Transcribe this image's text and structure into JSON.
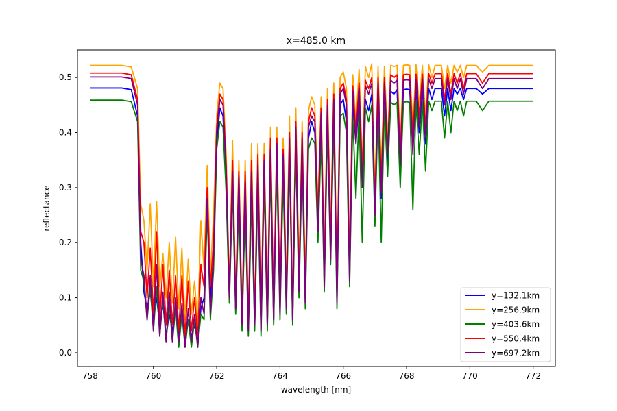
{
  "chart_data": {
    "type": "line",
    "title": "x=485.0 km",
    "xlabel": "wavelength [nm]",
    "ylabel": "reflectance",
    "xlim": [
      757.6,
      772.7
    ],
    "ylim": [
      -0.025,
      0.55
    ],
    "xticks": [
      758,
      760,
      762,
      764,
      766,
      768,
      770,
      772
    ],
    "yticks": [
      0.0,
      0.1,
      0.2,
      0.3,
      0.4,
      0.5
    ],
    "ytick_labels": [
      "0.0",
      "0.1",
      "0.2",
      "0.3",
      "0.4",
      "0.5"
    ],
    "grid": false,
    "legend_position": "lower-right",
    "x": [
      758.0,
      758.5,
      759.0,
      759.3,
      759.5,
      759.6,
      759.7,
      759.8,
      759.9,
      760.0,
      760.1,
      760.2,
      760.3,
      760.4,
      760.5,
      760.6,
      760.7,
      760.8,
      760.9,
      761.0,
      761.1,
      761.2,
      761.3,
      761.4,
      761.5,
      761.6,
      761.7,
      761.8,
      761.9,
      762.0,
      762.1,
      762.2,
      762.3,
      762.4,
      762.5,
      762.6,
      762.7,
      762.8,
      762.9,
      763.0,
      763.1,
      763.2,
      763.3,
      763.4,
      763.5,
      763.6,
      763.7,
      763.8,
      763.9,
      764.0,
      764.1,
      764.2,
      764.3,
      764.4,
      764.5,
      764.6,
      764.7,
      764.8,
      764.9,
      765.0,
      765.1,
      765.2,
      765.3,
      765.4,
      765.5,
      765.6,
      765.7,
      765.8,
      765.9,
      766.0,
      766.1,
      766.2,
      766.3,
      766.4,
      766.5,
      766.6,
      766.7,
      766.8,
      766.9,
      767.0,
      767.1,
      767.2,
      767.3,
      767.4,
      767.5,
      767.6,
      767.7,
      767.8,
      767.9,
      768.0,
      768.1,
      768.2,
      768.3,
      768.4,
      768.5,
      768.6,
      768.7,
      768.8,
      768.9,
      769.0,
      769.1,
      769.2,
      769.3,
      769.4,
      769.5,
      769.6,
      769.7,
      769.8,
      769.9,
      770.0,
      770.2,
      770.4,
      770.6,
      770.8,
      771.0,
      771.2,
      771.4,
      771.6,
      771.8,
      772.0
    ],
    "series": [
      {
        "name": "y=132.1km",
        "color": "#0000ff",
        "values": [
          0.481,
          0.481,
          0.481,
          0.478,
          0.43,
          0.2,
          0.11,
          0.08,
          0.11,
          0.06,
          0.1,
          0.05,
          0.09,
          0.03,
          0.07,
          0.04,
          0.08,
          0.03,
          0.07,
          0.02,
          0.06,
          0.03,
          0.05,
          0.02,
          0.08,
          0.1,
          0.27,
          0.1,
          0.17,
          0.38,
          0.445,
          0.43,
          0.3,
          0.1,
          0.31,
          0.08,
          0.3,
          0.05,
          0.28,
          0.04,
          0.3,
          0.05,
          0.32,
          0.04,
          0.33,
          0.05,
          0.36,
          0.06,
          0.36,
          0.08,
          0.34,
          0.09,
          0.37,
          0.06,
          0.39,
          0.12,
          0.37,
          0.1,
          0.39,
          0.42,
          0.4,
          0.23,
          0.41,
          0.13,
          0.43,
          0.18,
          0.44,
          0.1,
          0.45,
          0.46,
          0.42,
          0.14,
          0.455,
          0.38,
          0.46,
          0.31,
          0.46,
          0.44,
          0.47,
          0.25,
          0.47,
          0.28,
          0.475,
          0.34,
          0.475,
          0.47,
          0.478,
          0.33,
          0.478,
          0.479,
          0.478,
          0.37,
          0.479,
          0.4,
          0.48,
          0.38,
          0.48,
          0.46,
          0.48,
          0.48,
          0.48,
          0.43,
          0.48,
          0.44,
          0.48,
          0.47,
          0.48,
          0.46,
          0.48,
          0.48,
          0.48,
          0.47,
          0.48,
          0.48,
          0.48,
          0.48,
          0.48,
          0.48,
          0.48,
          0.48
        ]
      },
      {
        "name": "y=256.9km",
        "color": "#ffa500",
        "values": [
          0.522,
          0.522,
          0.522,
          0.519,
          0.48,
          0.27,
          0.24,
          0.15,
          0.27,
          0.12,
          0.275,
          0.12,
          0.18,
          0.1,
          0.2,
          0.09,
          0.21,
          0.08,
          0.19,
          0.06,
          0.17,
          0.07,
          0.13,
          0.05,
          0.24,
          0.15,
          0.34,
          0.14,
          0.25,
          0.43,
          0.49,
          0.48,
          0.36,
          0.12,
          0.385,
          0.1,
          0.35,
          0.07,
          0.35,
          0.06,
          0.38,
          0.07,
          0.38,
          0.06,
          0.38,
          0.07,
          0.41,
          0.08,
          0.41,
          0.1,
          0.39,
          0.12,
          0.43,
          0.08,
          0.445,
          0.15,
          0.42,
          0.13,
          0.44,
          0.465,
          0.45,
          0.27,
          0.465,
          0.16,
          0.48,
          0.22,
          0.49,
          0.12,
          0.5,
          0.51,
          0.48,
          0.17,
          0.505,
          0.42,
          0.515,
          0.35,
          0.52,
          0.5,
          0.525,
          0.29,
          0.52,
          0.33,
          0.52,
          0.39,
          0.522,
          0.52,
          0.522,
          0.38,
          0.522,
          0.523,
          0.522,
          0.41,
          0.523,
          0.45,
          0.522,
          0.43,
          0.523,
          0.5,
          0.522,
          0.522,
          0.522,
          0.48,
          0.522,
          0.49,
          0.522,
          0.51,
          0.522,
          0.5,
          0.522,
          0.522,
          0.522,
          0.51,
          0.522,
          0.522,
          0.522,
          0.522,
          0.522,
          0.522,
          0.522,
          0.522
        ]
      },
      {
        "name": "y=403.6km",
        "color": "#008000",
        "values": [
          0.459,
          0.459,
          0.459,
          0.456,
          0.42,
          0.15,
          0.13,
          0.06,
          0.12,
          0.04,
          0.12,
          0.03,
          0.1,
          0.02,
          0.09,
          0.02,
          0.08,
          0.01,
          0.07,
          0.01,
          0.06,
          0.01,
          0.06,
          0.01,
          0.07,
          0.06,
          0.26,
          0.06,
          0.15,
          0.37,
          0.42,
          0.41,
          0.29,
          0.09,
          0.3,
          0.07,
          0.28,
          0.04,
          0.27,
          0.03,
          0.28,
          0.04,
          0.3,
          0.03,
          0.31,
          0.04,
          0.33,
          0.05,
          0.34,
          0.06,
          0.32,
          0.07,
          0.35,
          0.05,
          0.37,
          0.1,
          0.35,
          0.08,
          0.37,
          0.39,
          0.38,
          0.2,
          0.39,
          0.11,
          0.41,
          0.16,
          0.42,
          0.08,
          0.43,
          0.435,
          0.4,
          0.12,
          0.43,
          0.28,
          0.44,
          0.2,
          0.445,
          0.42,
          0.45,
          0.23,
          0.45,
          0.2,
          0.45,
          0.32,
          0.455,
          0.45,
          0.455,
          0.3,
          0.455,
          0.456,
          0.455,
          0.26,
          0.456,
          0.36,
          0.456,
          0.33,
          0.457,
          0.44,
          0.457,
          0.457,
          0.457,
          0.39,
          0.457,
          0.4,
          0.457,
          0.44,
          0.457,
          0.43,
          0.457,
          0.457,
          0.457,
          0.44,
          0.457,
          0.457,
          0.457,
          0.457,
          0.457,
          0.457,
          0.457,
          0.457
        ]
      },
      {
        "name": "y=550.4km",
        "color": "#ff0000",
        "values": [
          0.508,
          0.508,
          0.508,
          0.505,
          0.46,
          0.22,
          0.2,
          0.1,
          0.19,
          0.07,
          0.22,
          0.06,
          0.16,
          0.05,
          0.15,
          0.05,
          0.14,
          0.04,
          0.14,
          0.03,
          0.13,
          0.04,
          0.1,
          0.03,
          0.16,
          0.12,
          0.3,
          0.12,
          0.2,
          0.41,
          0.47,
          0.46,
          0.34,
          0.11,
          0.35,
          0.09,
          0.33,
          0.06,
          0.33,
          0.05,
          0.35,
          0.06,
          0.36,
          0.05,
          0.36,
          0.06,
          0.39,
          0.07,
          0.39,
          0.09,
          0.37,
          0.1,
          0.4,
          0.07,
          0.42,
          0.13,
          0.4,
          0.11,
          0.42,
          0.445,
          0.43,
          0.25,
          0.445,
          0.15,
          0.46,
          0.2,
          0.47,
          0.11,
          0.48,
          0.49,
          0.46,
          0.16,
          0.485,
          0.4,
          0.49,
          0.33,
          0.495,
          0.48,
          0.5,
          0.27,
          0.5,
          0.31,
          0.5,
          0.37,
          0.505,
          0.5,
          0.505,
          0.36,
          0.505,
          0.506,
          0.505,
          0.39,
          0.506,
          0.43,
          0.506,
          0.41,
          0.507,
          0.49,
          0.507,
          0.507,
          0.507,
          0.46,
          0.507,
          0.47,
          0.507,
          0.49,
          0.507,
          0.48,
          0.507,
          0.507,
          0.507,
          0.49,
          0.507,
          0.507,
          0.507,
          0.507,
          0.507,
          0.507,
          0.507,
          0.507
        ]
      },
      {
        "name": "y=697.2km",
        "color": "#800080",
        "values": [
          0.501,
          0.501,
          0.501,
          0.498,
          0.45,
          0.17,
          0.14,
          0.06,
          0.14,
          0.04,
          0.16,
          0.03,
          0.11,
          0.02,
          0.11,
          0.02,
          0.1,
          0.02,
          0.09,
          0.01,
          0.08,
          0.02,
          0.07,
          0.01,
          0.1,
          0.07,
          0.28,
          0.07,
          0.17,
          0.4,
          0.46,
          0.45,
          0.33,
          0.1,
          0.33,
          0.08,
          0.32,
          0.05,
          0.31,
          0.04,
          0.33,
          0.05,
          0.34,
          0.04,
          0.35,
          0.05,
          0.37,
          0.06,
          0.38,
          0.07,
          0.36,
          0.08,
          0.39,
          0.06,
          0.41,
          0.11,
          0.39,
          0.09,
          0.41,
          0.43,
          0.42,
          0.22,
          0.435,
          0.12,
          0.45,
          0.17,
          0.46,
          0.09,
          0.47,
          0.48,
          0.45,
          0.13,
          0.475,
          0.38,
          0.48,
          0.3,
          0.485,
          0.47,
          0.49,
          0.25,
          0.49,
          0.29,
          0.49,
          0.36,
          0.495,
          0.49,
          0.495,
          0.34,
          0.495,
          0.496,
          0.495,
          0.36,
          0.496,
          0.41,
          0.497,
          0.39,
          0.498,
          0.48,
          0.498,
          0.498,
          0.498,
          0.45,
          0.498,
          0.46,
          0.498,
          0.48,
          0.498,
          0.47,
          0.498,
          0.498,
          0.498,
          0.48,
          0.498,
          0.498,
          0.498,
          0.498,
          0.498,
          0.498,
          0.498,
          0.498
        ]
      }
    ]
  }
}
